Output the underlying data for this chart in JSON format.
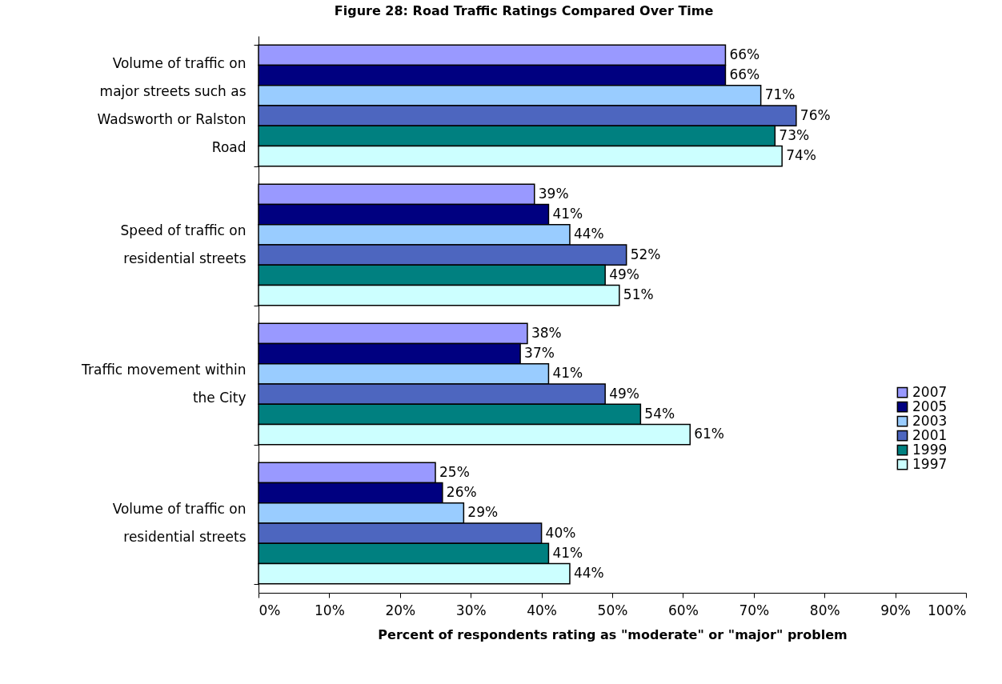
{
  "chart_data": {
    "type": "bar",
    "orientation": "horizontal",
    "title": "Figure 28: Road Traffic Ratings Compared Over Time",
    "xlabel": "Percent of respondents rating as \"moderate\" or \"major\" problem",
    "categories": [
      "Volume of traffic on major streets such as Wadsworth or Ralston Road",
      "Speed of traffic on residential streets",
      "Traffic movement within the City",
      "Volume of traffic on residential streets"
    ],
    "series": [
      {
        "name": "2007",
        "color": "#9999ff",
        "values": [
          66,
          39,
          38,
          25
        ],
        "value_labels": [
          "66%",
          "39%",
          "38%",
          "25%"
        ]
      },
      {
        "name": "2005",
        "color": "#000080",
        "values": [
          66,
          41,
          37,
          26
        ],
        "value_labels": [
          "66%",
          "41%",
          "37%",
          "26%"
        ]
      },
      {
        "name": "2003",
        "color": "#99ccff",
        "values": [
          71,
          44,
          41,
          29
        ],
        "value_labels": [
          "71%",
          "44%",
          "41%",
          "29%"
        ]
      },
      {
        "name": "2001",
        "color": "#4d66bf",
        "values": [
          76,
          52,
          49,
          40
        ],
        "value_labels": [
          "76%",
          "52%",
          "49%",
          "40%"
        ]
      },
      {
        "name": "1999",
        "color": "#008080",
        "values": [
          73,
          49,
          54,
          41
        ],
        "value_labels": [
          "73%",
          "49%",
          "54%",
          "41%"
        ]
      },
      {
        "name": "1997",
        "color": "#ccffff",
        "values": [
          74,
          51,
          61,
          44
        ],
        "value_labels": [
          "74%",
          "51%",
          "61%",
          "44%"
        ]
      }
    ],
    "xlim": [
      0,
      100
    ],
    "xticks": [
      {
        "value": 0,
        "label": "0%"
      },
      {
        "value": 10,
        "label": "10%"
      },
      {
        "value": 20,
        "label": "20%"
      },
      {
        "value": 30,
        "label": "30%"
      },
      {
        "value": 40,
        "label": "40%"
      },
      {
        "value": 50,
        "label": "50%"
      },
      {
        "value": 60,
        "label": "60%"
      },
      {
        "value": 70,
        "label": "70%"
      },
      {
        "value": 80,
        "label": "80%"
      },
      {
        "value": 90,
        "label": "90%"
      },
      {
        "value": 100,
        "label": "100%"
      }
    ],
    "legend": "right"
  }
}
